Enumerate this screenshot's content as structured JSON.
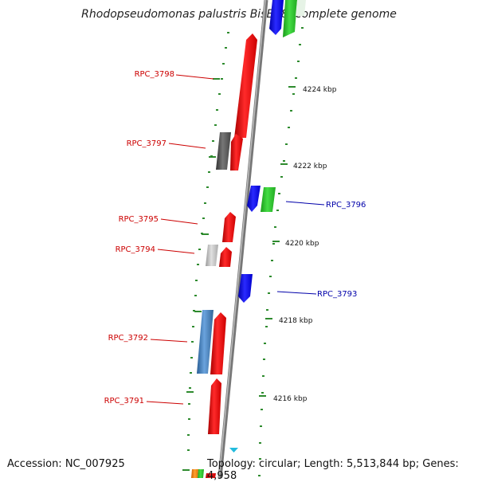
{
  "title": "Rhodopseudomonas palustris BisB18, complete genome",
  "accession": "Accession: NC_007925",
  "topology": "Topology: circular; Length: 5,513,844 bp; Genes: 4,958",
  "colors": {
    "backbone": "#8a8a8a",
    "tick": "#2e8b2e",
    "forward_gene": "#ff0000",
    "reverse_gene": "#0000ff",
    "reverse_label": "#0000aa",
    "forward_label": "#cc0000",
    "marker": "#22bbdd"
  },
  "scale_labels": [
    "4224 kbp",
    "4222 kbp",
    "4220 kbp",
    "4218 kbp",
    "4216 kbp"
  ],
  "gene_labels_left": [
    "RPC_3798",
    "RPC_3797",
    "RPC_3795",
    "RPC_3794",
    "RPC_3792",
    "RPC_3791"
  ],
  "gene_labels_right": [
    "RPC_3796",
    "RPC_3793"
  ]
}
